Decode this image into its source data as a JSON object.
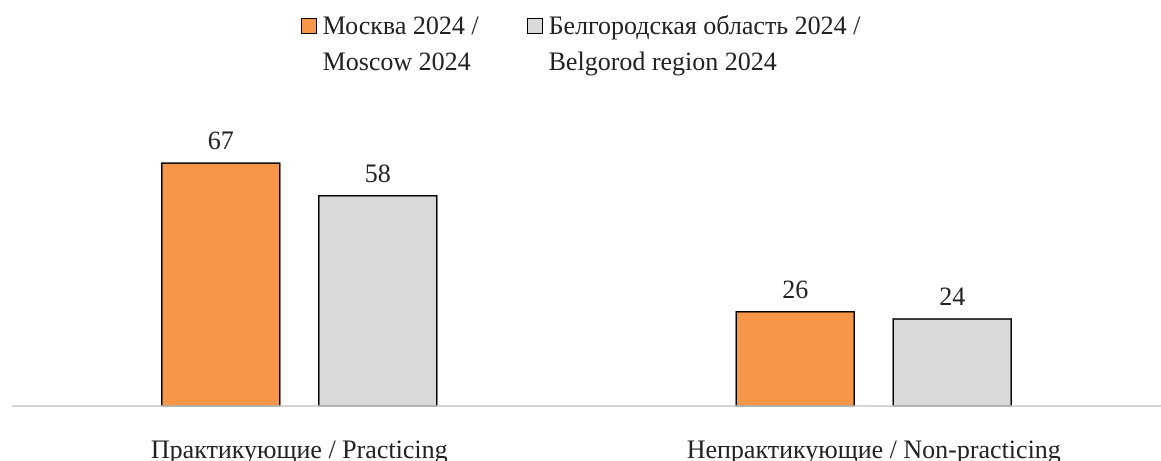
{
  "chart_data": {
    "type": "bar",
    "categories": [
      "Практикующие / Practicing",
      "Непрактикующие / Non-practicing"
    ],
    "series": [
      {
        "name": "Москва 2024 /\nMoscow 2024",
        "color": "#f79646",
        "values": [
          67,
          26
        ]
      },
      {
        "name": "Белгородская область 2024 /\nBelgorod region 2024",
        "color": "#d9d9d9",
        "values": [
          58,
          24
        ]
      }
    ],
    "ylim": [
      0,
      80
    ],
    "legend": "top"
  }
}
